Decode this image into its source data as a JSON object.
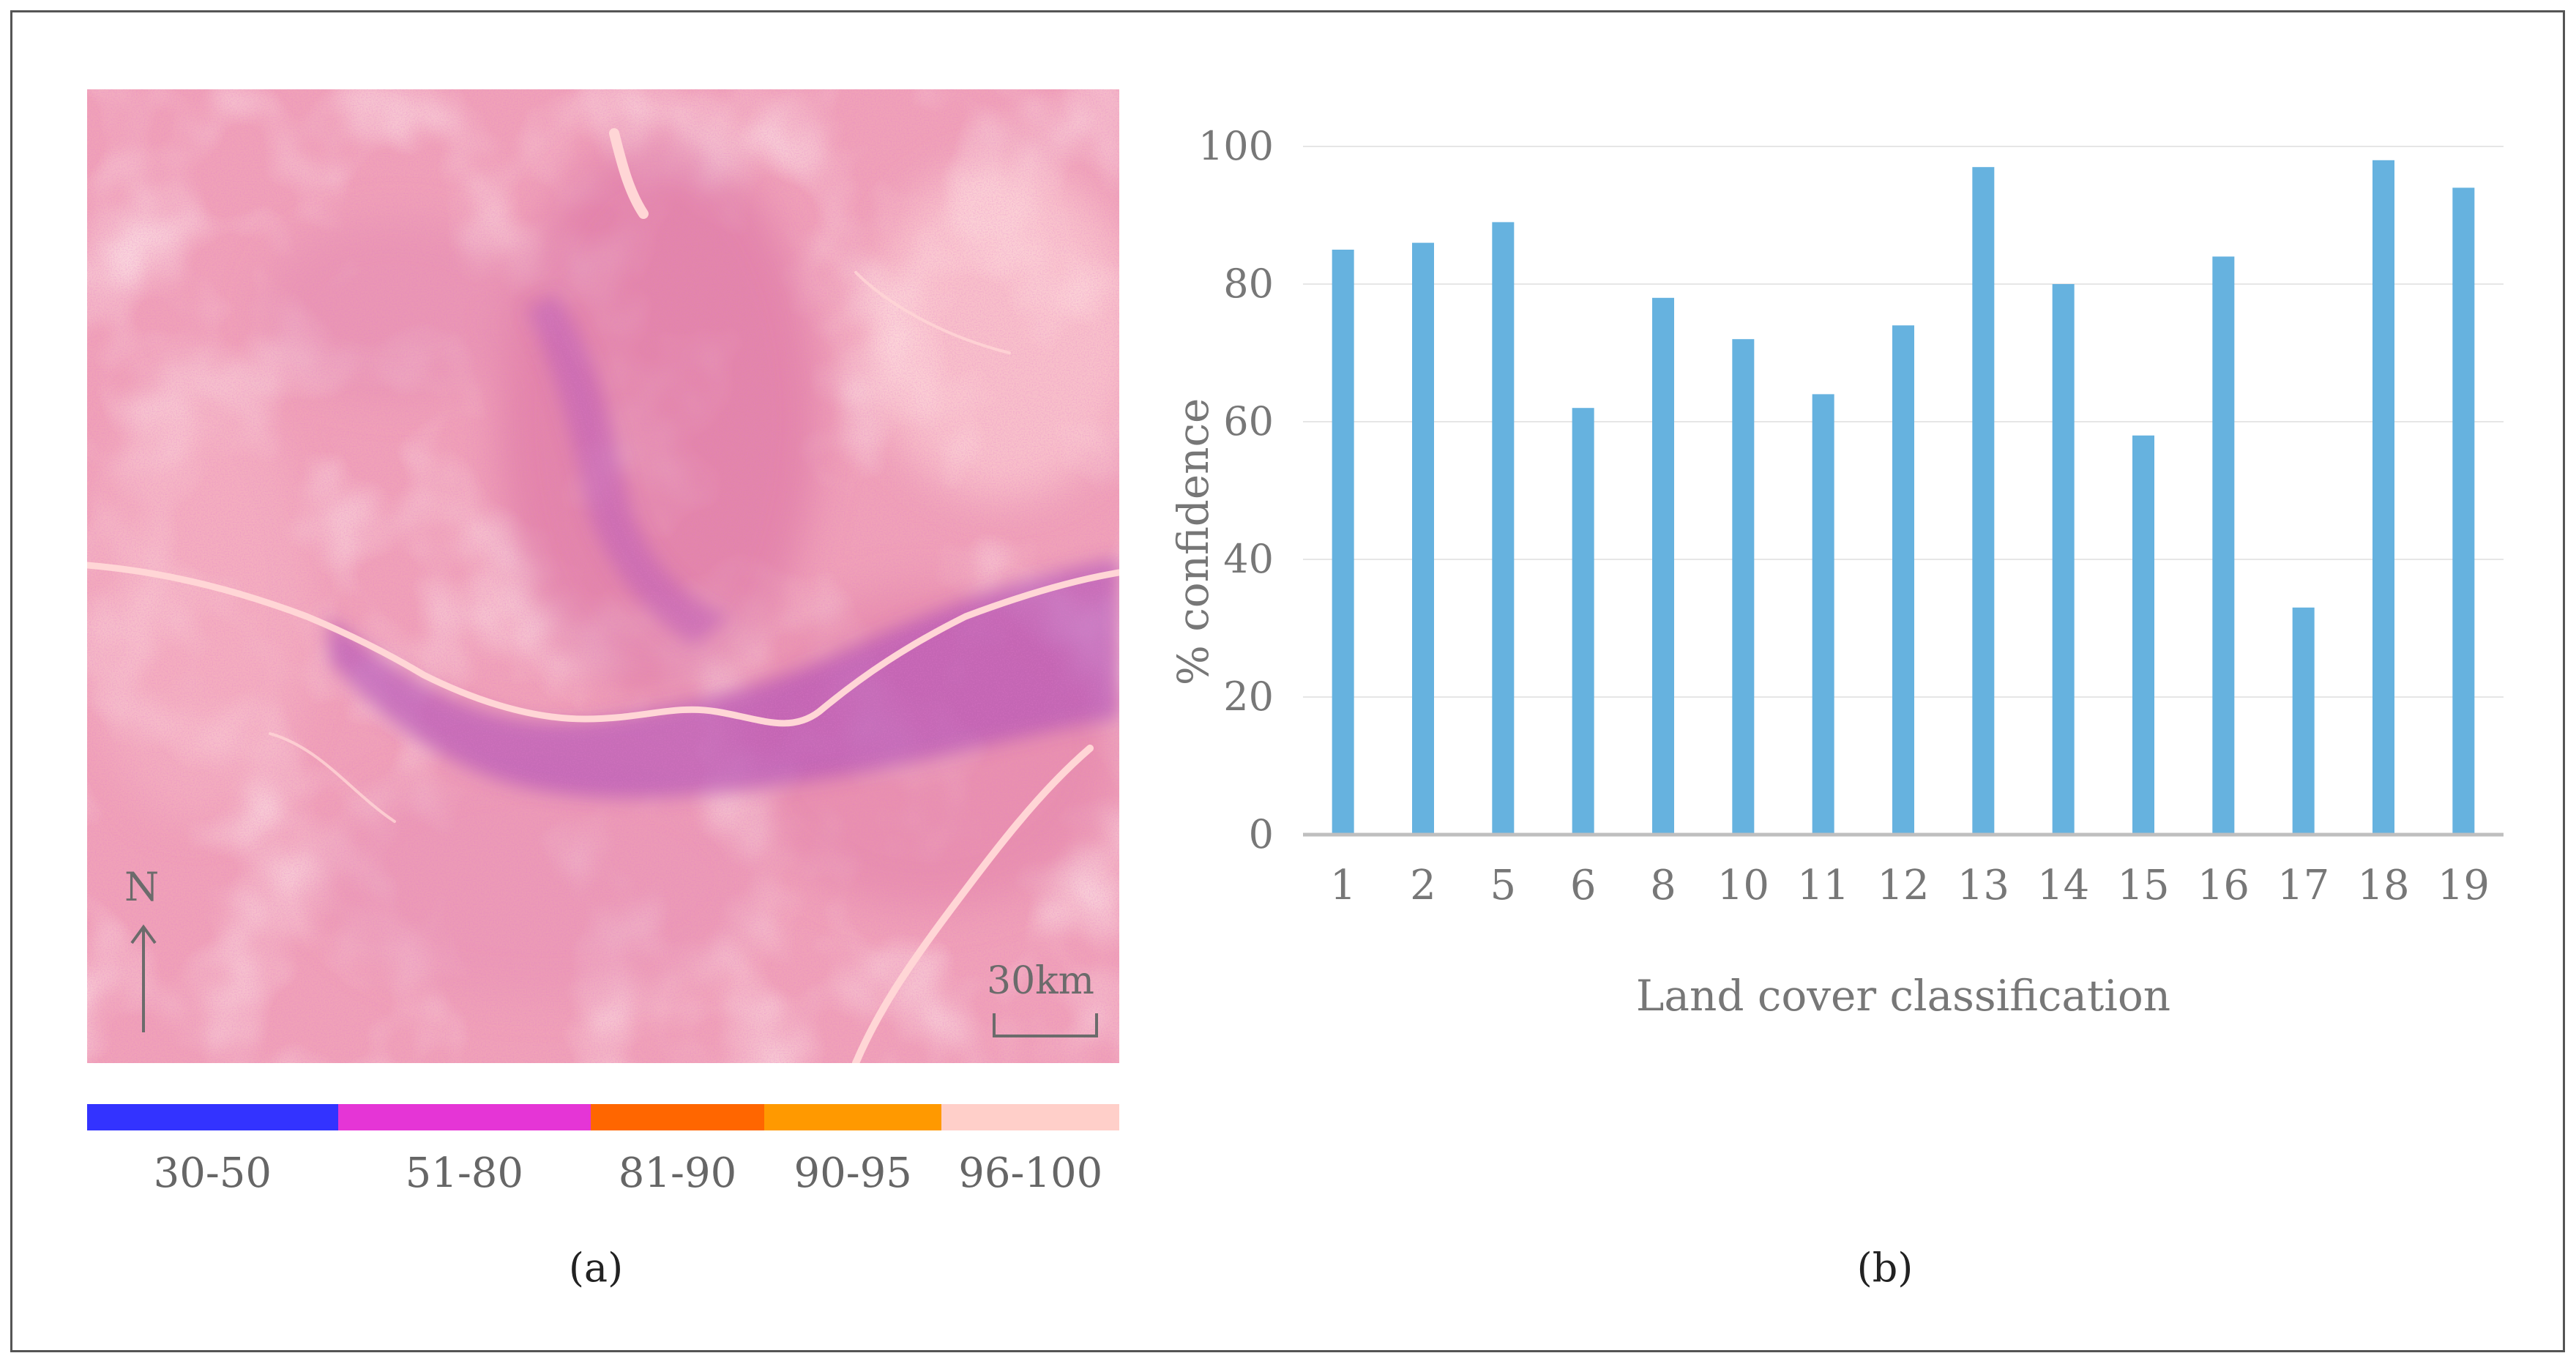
{
  "panel_a": {
    "north_label": "N",
    "scale_label": "30km",
    "legend": [
      {
        "label": "30-50",
        "color": "#3333ff",
        "width_fraction": 0.243
      },
      {
        "label": "51-80",
        "color": "#e535d6",
        "width_fraction": 0.245
      },
      {
        "label": "81-90",
        "color": "#ff6600",
        "width_fraction": 0.168
      },
      {
        "label": "90-95",
        "color": "#ff9900",
        "width_fraction": 0.172
      },
      {
        "label": "96-100",
        "color": "#ffcfc9",
        "width_fraction": 0.172
      }
    ],
    "caption": "(a)"
  },
  "panel_b": {
    "caption": "(b)"
  },
  "chart_data": {
    "type": "bar",
    "categories": [
      "1",
      "2",
      "5",
      "6",
      "8",
      "10",
      "11",
      "12",
      "13",
      "14",
      "15",
      "16",
      "17",
      "18",
      "19"
    ],
    "values": [
      85,
      86,
      89,
      62,
      78,
      72,
      64,
      74,
      97,
      80,
      58,
      84,
      33,
      98,
      94
    ],
    "title": "",
    "xlabel": "Land cover classification",
    "ylabel": "% confidence",
    "ylim": [
      0,
      100
    ],
    "yticks": [
      0,
      20,
      40,
      60,
      80,
      100
    ],
    "bar_color": "#66b2df",
    "grid": true,
    "legend": "none"
  }
}
